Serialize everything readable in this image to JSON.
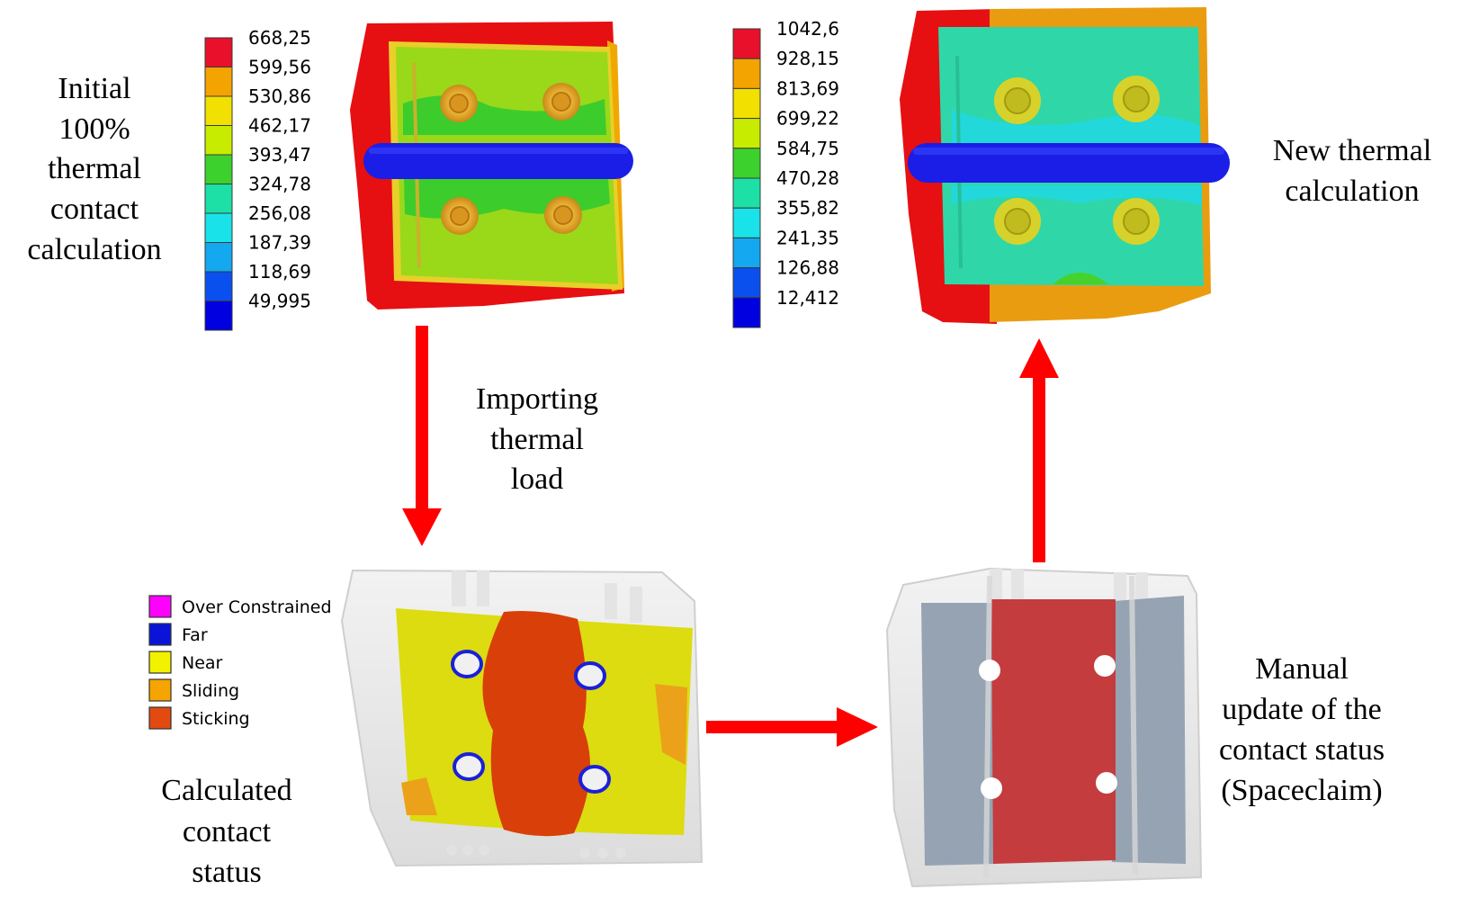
{
  "captions": {
    "initial": [
      "Initial",
      "100%",
      "thermal",
      "contact",
      "calculation"
    ],
    "new_thermal": [
      "New thermal",
      "calculation"
    ],
    "importing": [
      "Importing",
      "thermal",
      "load"
    ],
    "calculated": [
      "Calculated",
      "contact",
      "status"
    ],
    "manual": [
      "Manual",
      "update of the",
      "contact status",
      "(Spaceclaim)"
    ]
  },
  "legend_initial": {
    "values": [
      "668,25",
      "599,56",
      "530,86",
      "462,17",
      "393,47",
      "324,78",
      "256,08",
      "187,39",
      "118,69",
      "49,995"
    ],
    "colors": [
      "#e8102a",
      "#f4a400",
      "#f2e000",
      "#c8ec00",
      "#3cd12c",
      "#1de0a6",
      "#19e3e8",
      "#13a8f0",
      "#0a50ef",
      "#0000e0"
    ]
  },
  "legend_new": {
    "values": [
      "1042,6",
      "928,15",
      "813,69",
      "699,22",
      "584,75",
      "470,28",
      "355,82",
      "241,35",
      "126,88",
      "12,412"
    ],
    "colors": [
      "#e8102a",
      "#f4a400",
      "#f2e000",
      "#c8ec00",
      "#3cd12c",
      "#1de0a6",
      "#19e3e8",
      "#13a8f0",
      "#0a50ef",
      "#0000e0"
    ]
  },
  "contact_legend": {
    "items": [
      {
        "label": "Over Constrained",
        "color": "#ff00ff"
      },
      {
        "label": "Far",
        "color": "#0a14d8"
      },
      {
        "label": "Near",
        "color": "#f2f200"
      },
      {
        "label": "Sliding",
        "color": "#f6a500"
      },
      {
        "label": "Sticking",
        "color": "#e24a12"
      }
    ]
  },
  "colors": {
    "arrow": "#ff0000",
    "frame_red": "#e60f12",
    "plate_green": "#9ad81a",
    "plate_teal": "#2fd7a8",
    "pipe_blue": "#1a1ee6",
    "near_yellow": "#dcdc10",
    "sticking_orange": "#d93f08",
    "update_gray": "#95a3b3",
    "update_red": "#c43c3e"
  }
}
